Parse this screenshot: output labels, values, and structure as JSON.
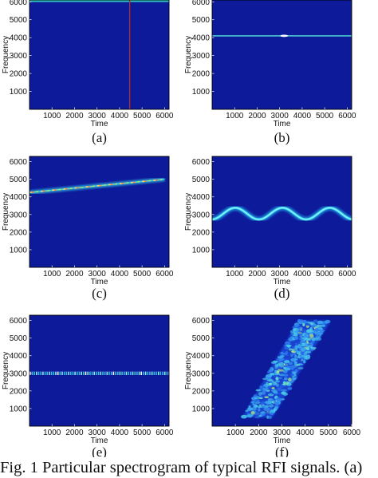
{
  "caption": "Fig. 1  Particular spectrogram of typical RFI signals. (a)",
  "colors": {
    "background": "#0d1a9a",
    "frame": "#000000"
  },
  "panels": [
    {
      "label": "(a)",
      "chart_data": {
        "type": "heatmap",
        "signal": "impulsive (vertical line)",
        "xlabel": "Time",
        "ylabel": "Frequency",
        "xlim": [
          0,
          6200
        ],
        "ylim": [
          0,
          6100
        ],
        "xticks": [
          1000,
          2000,
          3000,
          4000,
          5000,
          6000
        ],
        "yticks": [
          1000,
          2000,
          3000,
          4000,
          5000,
          6000
        ],
        "impulse_time": 4450,
        "x_tick_labels": [
          "1000",
          "2000",
          "3000",
          "4000",
          "5000",
          "6000"
        ],
        "y_tick_labels": [
          "1000",
          "2000",
          "3000",
          "4000",
          "5000",
          "6000"
        ]
      }
    },
    {
      "label": "(b)",
      "chart_data": {
        "type": "heatmap",
        "signal": "single-tone (horizontal line)",
        "xlabel": "Time",
        "ylabel": "Frequency",
        "xlim": [
          0,
          6200
        ],
        "ylim": [
          0,
          6100
        ],
        "tone_frequency": 4100,
        "x_tick_labels": [
          "1000",
          "2000",
          "3000",
          "4000",
          "5000",
          "6000"
        ],
        "y_tick_labels": [
          "1000",
          "2000",
          "3000",
          "4000",
          "5000",
          "6000"
        ]
      }
    },
    {
      "label": "(c)",
      "chart_data": {
        "type": "heatmap",
        "signal": "linear sweep",
        "xlabel": "Time",
        "ylabel": "Frequency",
        "xlim": [
          0,
          6200
        ],
        "ylim": [
          0,
          6300
        ],
        "sweep": {
          "start": [
            0,
            4250
          ],
          "end": [
            6000,
            5000
          ]
        },
        "x_tick_labels": [
          "1000",
          "2000",
          "3000",
          "4000",
          "5000",
          "6000"
        ],
        "y_tick_labels": [
          "1000",
          "2000",
          "3000",
          "4000",
          "5000",
          "6000"
        ]
      }
    },
    {
      "label": "(d)",
      "chart_data": {
        "type": "heatmap",
        "signal": "sinusoidal frequency modulation",
        "xlabel": "Time",
        "ylabel": "Frequency",
        "xlim": [
          0,
          6200
        ],
        "ylim": [
          0,
          6300
        ],
        "center_frequency": 3050,
        "amplitude": 330,
        "period": 2100,
        "x_tick_labels": [
          "1000",
          "2000",
          "3000",
          "4000",
          "5000",
          "6000"
        ],
        "y_tick_labels": [
          "1000",
          "2000",
          "3000",
          "4000",
          "5000",
          "6000"
        ]
      }
    },
    {
      "label": "(e)",
      "chart_data": {
        "type": "heatmap",
        "signal": "pulsed tone (dotted line)",
        "xlabel": "Time",
        "ylabel": "Frequency",
        "xlim": [
          0,
          6200
        ],
        "ylim": [
          0,
          6300
        ],
        "tone_frequency": 3000,
        "x_tick_labels": [
          "1000",
          "2000",
          "3000",
          "4000",
          "5000",
          "6000"
        ],
        "y_tick_labels": [
          "1000",
          "2000",
          "3000",
          "4000",
          "5000",
          "6000"
        ]
      }
    },
    {
      "label": "(f)",
      "chart_data": {
        "type": "heatmap",
        "signal": "wideband noise-like sweep",
        "xlabel": "Time",
        "ylabel": "Frequency",
        "xlim": [
          0,
          6000
        ],
        "ylim": [
          0,
          6300
        ],
        "band_corners": [
          [
            1300,
            500
          ],
          [
            2600,
            500
          ],
          [
            5100,
            6000
          ],
          [
            3700,
            6000
          ]
        ],
        "x_tick_labels": [
          "1000",
          "2000",
          "3000",
          "4000",
          "5000",
          "6000"
        ],
        "y_tick_labels": [
          "1000",
          "2000",
          "3000",
          "4000",
          "5000",
          "6000"
        ]
      }
    }
  ]
}
